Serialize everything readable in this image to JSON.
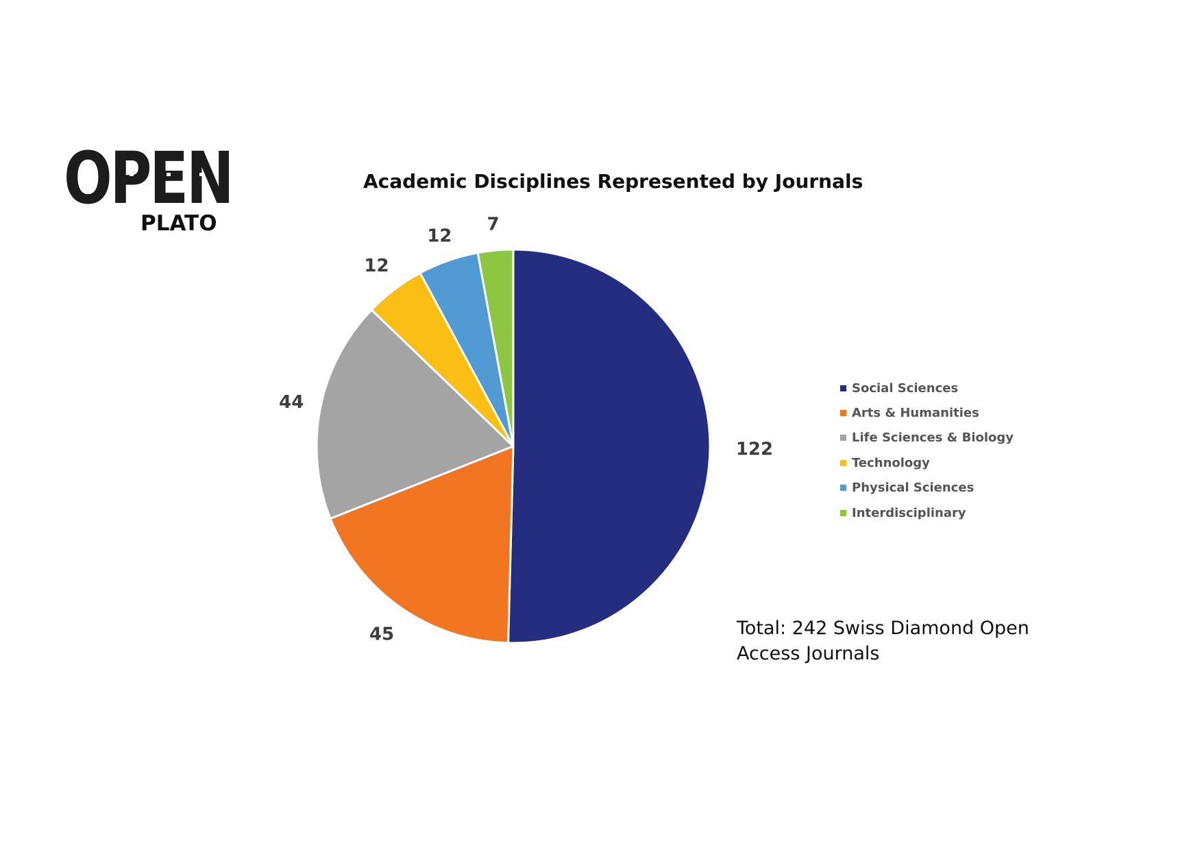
{
  "logo": {
    "open": "OPEN",
    "plato": "PLATO"
  },
  "chart_data": {
    "type": "pie",
    "title": "Academic Disciplines Represented by Journals",
    "legend_position": "right",
    "categories": [
      "Social Sciences",
      "Arts & Humanities",
      "Life Sciences & Biology",
      "Technology",
      "Physical Sciences",
      "Interdisciplinary"
    ],
    "values": [
      122,
      45,
      44,
      12,
      12,
      7
    ],
    "colors": [
      "#252d80",
      "#f27622",
      "#a3a4a3",
      "#fbbe14",
      "#519ad4",
      "#8dc641"
    ],
    "data_labels": [
      "122",
      "45",
      "44",
      "12",
      "12",
      "7"
    ]
  },
  "note": "Total: 242 Swiss Diamond Open Access Journals"
}
